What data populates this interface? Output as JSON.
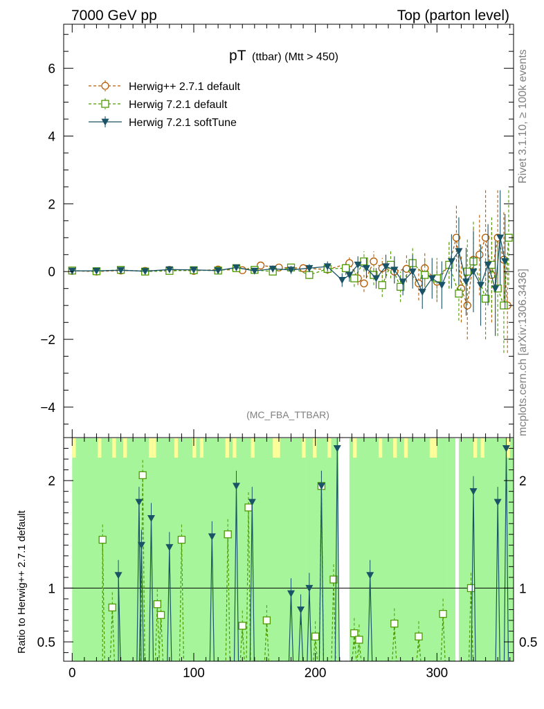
{
  "header": {
    "left": "7000 GeV pp",
    "right": "Top (parton level)"
  },
  "side_labels": {
    "rivet": "Rivet 3.1.10, ≥ 100k events",
    "mcplots": "mcplots.cern.ch [arXiv:1306.3436]"
  },
  "plot": {
    "title_main": "pT",
    "title_sub": "(ttbar) (Mtt > 450)",
    "analysis": "(MC_FBA_TTBAR)",
    "ratio_ylabel": "Ratio to Herwig++ 2.7.1 default"
  },
  "legend": [
    {
      "label": "Herwig++ 2.7.1 default",
      "color": "#b35900",
      "marker": "circle-open",
      "dash": "dashed"
    },
    {
      "label": "Herwig 7.2.1 default",
      "color": "#4d9900",
      "marker": "square-open",
      "dash": "dashed"
    },
    {
      "label": "Herwig 7.2.1 softTune",
      "color": "#1a5266",
      "marker": "triangle-down-filled",
      "dash": "solid"
    }
  ],
  "chart_data": [
    {
      "type": "line",
      "panel": "main",
      "xlim": [
        -7,
        363
      ],
      "ylim": [
        -4.9,
        7.3
      ],
      "y_ticks": [
        -4,
        -2,
        0,
        2,
        4,
        6
      ],
      "y_tick_labels": [
        "−4",
        "−2",
        "0",
        "2",
        "4",
        "6"
      ],
      "series": [
        {
          "name": "Herwig++ 2.7.1 default",
          "x": [
            0,
            20,
            40,
            60,
            80,
            100,
            120,
            140,
            155,
            170,
            190,
            210,
            228,
            235,
            240,
            248,
            255,
            265,
            275,
            285,
            290,
            300,
            310,
            316,
            320,
            325,
            330,
            335,
            340,
            345,
            350,
            355,
            358
          ],
          "y": [
            0.02,
            0.0,
            0.03,
            0.02,
            0.05,
            0.02,
            0.06,
            0.04,
            0.18,
            0.12,
            0.1,
            0.06,
            0.25,
            -0.2,
            -0.35,
            0.3,
            0.1,
            0.0,
            0.08,
            -0.35,
            0.1,
            -0.3,
            0.2,
            1.0,
            -0.5,
            -1.0,
            0.35,
            0.5,
            1.0,
            -0.1,
            1.0,
            0.35,
            -1.0
          ],
          "err": [
            0.03,
            0.03,
            0.04,
            0.04,
            0.05,
            0.05,
            0.06,
            0.06,
            0.08,
            0.1,
            0.12,
            0.12,
            0.2,
            0.2,
            0.25,
            0.3,
            0.3,
            0.35,
            0.4,
            0.5,
            0.5,
            0.6,
            0.7,
            1.0,
            1.0,
            1.0,
            1.0,
            1.2,
            1.4,
            1.4,
            1.4,
            1.4,
            1.4
          ]
        },
        {
          "name": "Herwig 7.2.1 default",
          "x": [
            0,
            20,
            40,
            60,
            80,
            100,
            120,
            135,
            150,
            165,
            180,
            195,
            210,
            225,
            232,
            240,
            248,
            255,
            262,
            270,
            280,
            290,
            300,
            310,
            318,
            325,
            330,
            340,
            345,
            350,
            355,
            359
          ],
          "y": [
            0.03,
            0.01,
            0.05,
            0.0,
            0.02,
            0.04,
            0.03,
            0.1,
            0.05,
            0.0,
            0.12,
            -0.1,
            0.08,
            0.1,
            -0.2,
            0.3,
            -0.1,
            -0.4,
            0.2,
            -0.45,
            0.25,
            -0.1,
            -0.2,
            0.2,
            -0.65,
            0.0,
            0.3,
            -0.8,
            0.2,
            -0.5,
            -1.0,
            1.0
          ],
          "err": [
            0.03,
            0.03,
            0.04,
            0.04,
            0.05,
            0.05,
            0.06,
            0.06,
            0.08,
            0.1,
            0.12,
            0.12,
            0.15,
            0.2,
            0.25,
            0.3,
            0.3,
            0.35,
            0.4,
            0.45,
            0.5,
            0.5,
            0.6,
            0.7,
            0.8,
            1.0,
            1.2,
            1.2,
            1.4,
            1.4,
            1.4,
            1.4
          ]
        },
        {
          "name": "Herwig 7.2.1 softTune",
          "x": [
            0,
            20,
            40,
            60,
            80,
            100,
            120,
            135,
            150,
            165,
            180,
            195,
            210,
            222,
            228,
            235,
            242,
            250,
            258,
            265,
            272,
            280,
            288,
            296,
            304,
            312,
            318,
            324,
            330,
            336,
            342,
            348,
            352,
            356
          ],
          "y": [
            0.02,
            0.02,
            0.04,
            0.01,
            0.06,
            0.05,
            0.03,
            0.12,
            0.02,
            0.08,
            0.05,
            0.1,
            0.15,
            -0.25,
            -0.1,
            0.2,
            0.1,
            -0.2,
            0.15,
            0.05,
            -0.3,
            0.0,
            -0.6,
            -0.2,
            -0.4,
            0.3,
            0.6,
            -0.3,
            0.0,
            -0.4,
            0.2,
            -0.5,
            1.0,
            0.3
          ],
          "err": [
            0.03,
            0.03,
            0.04,
            0.04,
            0.05,
            0.05,
            0.06,
            0.06,
            0.08,
            0.1,
            0.12,
            0.12,
            0.15,
            0.2,
            0.2,
            0.25,
            0.3,
            0.3,
            0.35,
            0.4,
            0.4,
            0.5,
            0.5,
            0.6,
            0.7,
            0.8,
            1.0,
            1.0,
            1.2,
            1.2,
            1.2,
            1.4,
            1.4,
            1.4
          ]
        }
      ]
    },
    {
      "type": "line",
      "panel": "ratio",
      "xlim": [
        -7,
        363
      ],
      "ylim": [
        0.32,
        2.4
      ],
      "x_ticks": [
        0,
        100,
        200,
        300
      ],
      "y_ticks": [
        0.5,
        1,
        2
      ],
      "y_tick_labels": [
        "0.5",
        "1",
        "2"
      ],
      "reference_y": 1.0,
      "series": [
        {
          "name": "Herwig 7.2.1 default",
          "x": [
            25,
            33,
            58,
            70,
            73,
            90,
            128,
            140,
            145,
            160,
            200,
            205,
            215,
            232,
            236,
            265,
            285,
            305,
            328
          ],
          "y": [
            1.45,
            0.82,
            2.05,
            0.85,
            0.75,
            1.45,
            1.5,
            0.65,
            1.75,
            0.7,
            0.55,
            1.95,
            1.08,
            0.58,
            0.52,
            0.67,
            0.55,
            0.76,
            1.0
          ]
        },
        {
          "name": "Herwig 7.2.1 softTune",
          "x": [
            38,
            55,
            57,
            65,
            80,
            115,
            135,
            148,
            180,
            188,
            195,
            205,
            218,
            245,
            330,
            350,
            357
          ],
          "y": [
            1.12,
            1.8,
            1.4,
            1.65,
            1.38,
            1.48,
            1.95,
            1.8,
            0.95,
            0.8,
            1.0,
            1.95,
            2.3,
            1.12,
            1.9,
            1.8,
            2.3
          ]
        }
      ]
    }
  ]
}
